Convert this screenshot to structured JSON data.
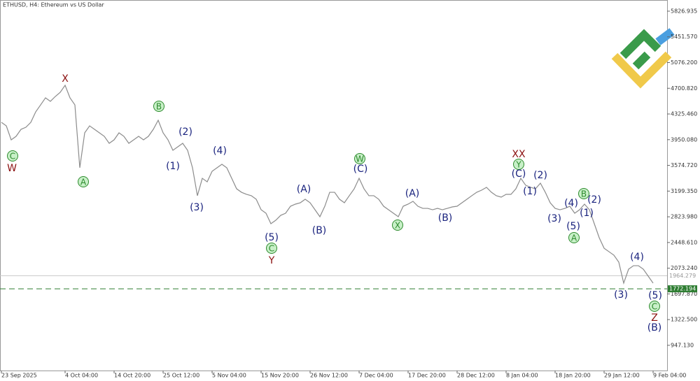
{
  "chart_data": {
    "type": "line",
    "title": "ETHUSD, H4:  Ethereum vs US Dollar",
    "color": "#8c8c8c",
    "categories": [
      "23 Sep 2025",
      null,
      null,
      null,
      null,
      null,
      null,
      null,
      null,
      null,
      null,
      null,
      null,
      "4 Oct 04:00",
      null,
      null,
      null,
      null,
      null,
      null,
      null,
      null,
      null,
      "14 Oct 20:00",
      null,
      null,
      null,
      null,
      null,
      null,
      null,
      null,
      null,
      "25 Oct 12:00",
      null,
      null,
      null,
      null,
      null,
      null,
      null,
      null,
      null,
      "5 Nov 04:00",
      null,
      null,
      null,
      null,
      null,
      null,
      null,
      null,
      null,
      "15 Nov 20:00",
      null,
      null,
      null,
      null,
      null,
      null,
      null,
      null,
      null,
      "26 Nov 12:00",
      null,
      null,
      null,
      null,
      null,
      null,
      null,
      null,
      null,
      "7 Dec 04:00",
      null,
      null,
      null,
      null,
      null,
      null,
      null,
      null,
      null,
      "17 Dec 20:00",
      null,
      null,
      null,
      null,
      null,
      null,
      null,
      null,
      null,
      "28 Dec 12:00",
      null,
      null,
      null,
      null,
      null,
      null,
      null,
      null,
      null,
      "8 Jan 04:00",
      null,
      null,
      null,
      null,
      null,
      null,
      null,
      null,
      null,
      "18 Jan 20:00",
      null,
      null,
      null,
      null,
      null,
      null,
      null,
      null,
      null,
      "29 Jan 12:00",
      null,
      null,
      null,
      null,
      null,
      null,
      null,
      null,
      null,
      "9 Feb 04:00"
    ],
    "values": [
      4203,
      4152,
      3948,
      3999,
      4101,
      4132,
      4203,
      4356,
      4458,
      4561,
      4510,
      4581,
      4642,
      4744,
      4561,
      4458,
      3540,
      4050,
      4152,
      4101,
      4050,
      3999,
      3897,
      3948,
      4050,
      3999,
      3897,
      3948,
      3999,
      3948,
      3999,
      4101,
      4234,
      4050,
      3948,
      3795,
      3846,
      3897,
      3795,
      3540,
      3132,
      3386,
      3335,
      3489,
      3540,
      3591,
      3540,
      3386,
      3233,
      3182,
      3152,
      3132,
      3080,
      2927,
      2876,
      2723,
      2774,
      2845,
      2876,
      2978,
      3009,
      3029,
      3080,
      3029,
      2927,
      2825,
      2978,
      3182,
      3182,
      3080,
      3029,
      3132,
      3233,
      3386,
      3233,
      3132,
      3132,
      3080,
      2978,
      2927,
      2876,
      2825,
      2978,
      3009,
      3050,
      2978,
      2947,
      2947,
      2927,
      2947,
      2927,
      2947,
      2968,
      2978,
      3029,
      3080,
      3132,
      3182,
      3213,
      3254,
      3182,
      3132,
      3111,
      3152,
      3152,
      3233,
      3386,
      3284,
      3254,
      3233,
      3315,
      3182,
      3029,
      2947,
      2927,
      2947,
      2978,
      2876,
      2927,
      3009,
      2927,
      2723,
      2519,
      2365,
      2314,
      2263,
      2161,
      1855,
      2059,
      2110,
      2110,
      2059,
      1957,
      1855
    ],
    "ylim": [
      579,
      5990
    ],
    "yticks": [
      {
        "value": 5826.935,
        "label": "5826.935"
      },
      {
        "value": 5451.57,
        "label": "5451.570"
      },
      {
        "value": 5076.2,
        "label": "5076.200"
      },
      {
        "value": 4700.82,
        "label": "4700.820"
      },
      {
        "value": 4325.46,
        "label": "4325.460"
      },
      {
        "value": 3950.08,
        "label": "3950.080"
      },
      {
        "value": 3574.72,
        "label": "3574.720"
      },
      {
        "value": 3199.35,
        "label": "3199.350"
      },
      {
        "value": 2823.98,
        "label": "2823.980"
      },
      {
        "value": 2448.61,
        "label": "2448.610"
      },
      {
        "value": 2073.24,
        "label": "2073.240"
      },
      {
        "value": 1697.87,
        "label": "1697.870"
      },
      {
        "value": 1322.5,
        "label": "1322.500"
      },
      {
        "value": 947.13,
        "label": "947.130"
      }
    ],
    "levels": [
      {
        "value": 1964.279,
        "color": "#c8c8c8",
        "style": "solid"
      },
      {
        "value": 1772.194,
        "color": "#2e7d32",
        "style": "dashed"
      }
    ],
    "annotations": [
      "C",
      "W",
      "X",
      "A",
      "B",
      "(2)",
      "(1)",
      "(4)",
      "(3)",
      "(A)",
      "(B)",
      "(5)",
      "C",
      "Y",
      "W",
      "(C)",
      "(A)",
      "X",
      "(B)",
      "XX",
      "Y",
      "(C)",
      "(2)",
      "(1)",
      "(3)",
      "(4)",
      "(5)",
      "A",
      "B",
      "(2)",
      "(1)",
      "(4)",
      "(3)",
      "(5)",
      "C",
      "Z",
      "(B)"
    ]
  }
}
